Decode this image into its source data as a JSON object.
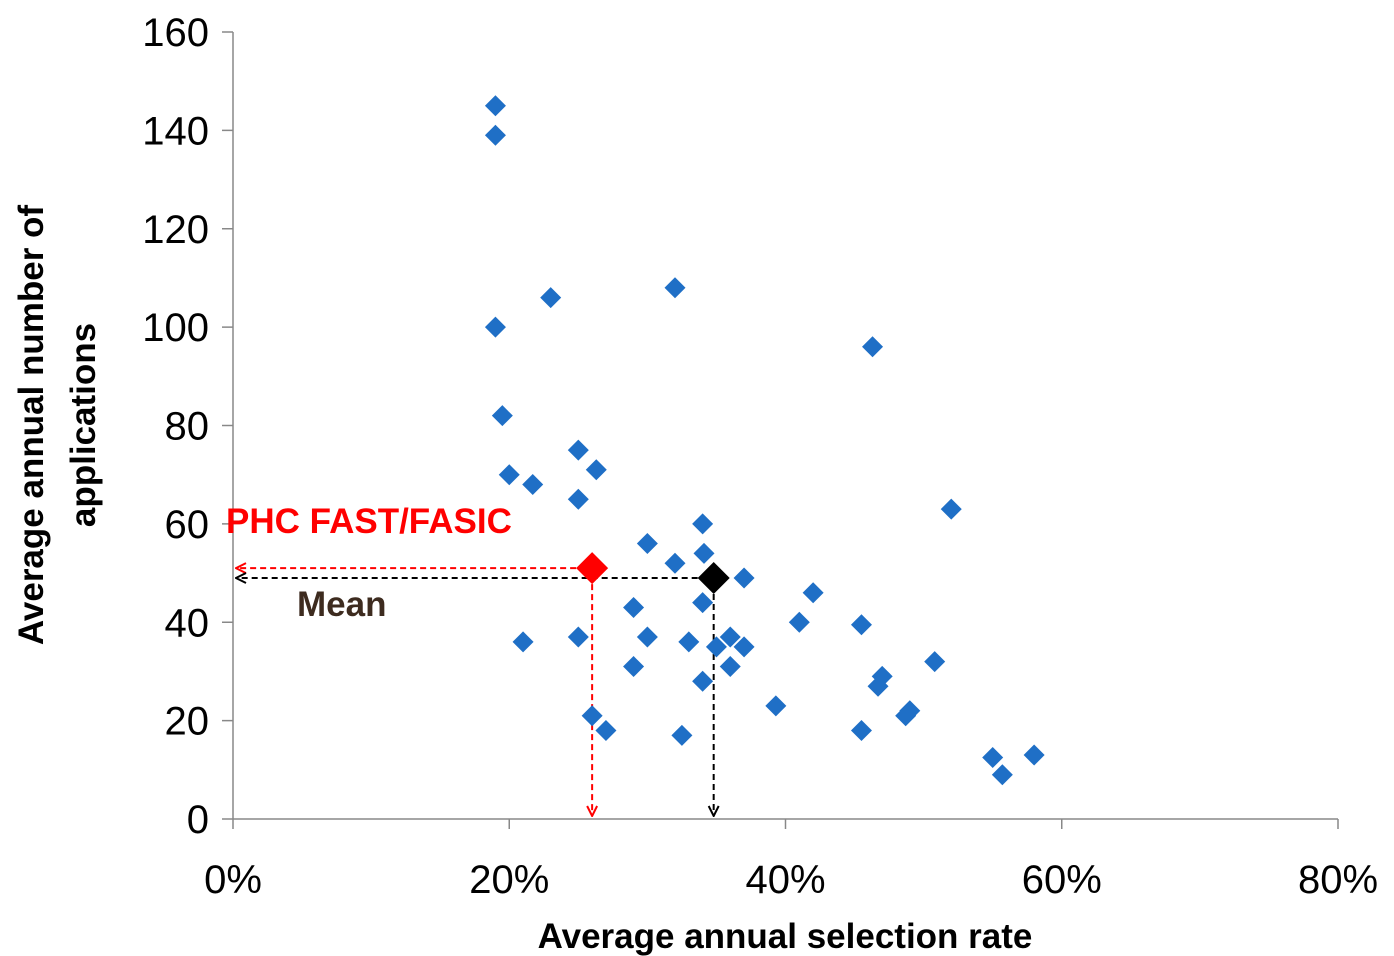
{
  "chart_data": {
    "type": "scatter",
    "xlabel": "Average annual selection rate",
    "ylabel_lines": [
      "Average annual number of",
      "applications"
    ],
    "xlim": [
      0,
      0.8
    ],
    "ylim": [
      0,
      160
    ],
    "x_ticks": [
      0,
      0.2,
      0.4,
      0.6,
      0.8
    ],
    "x_tick_labels": [
      "0%",
      "20%",
      "40%",
      "60%",
      "80%"
    ],
    "y_ticks": [
      0,
      20,
      40,
      60,
      80,
      100,
      120,
      140,
      160
    ],
    "y_tick_labels": [
      "0",
      "20",
      "40",
      "60",
      "80",
      "100",
      "120",
      "140",
      "160"
    ],
    "grid": false,
    "legend": "none",
    "series": [
      {
        "color": "#1f6fc6",
        "marker": "diamond",
        "points": [
          [
            0.19,
            145
          ],
          [
            0.19,
            139
          ],
          [
            0.19,
            100
          ],
          [
            0.195,
            82
          ],
          [
            0.2,
            70
          ],
          [
            0.217,
            68
          ],
          [
            0.23,
            106
          ],
          [
            0.21,
            36
          ],
          [
            0.25,
            75
          ],
          [
            0.25,
            65
          ],
          [
            0.263,
            71
          ],
          [
            0.25,
            37
          ],
          [
            0.26,
            21
          ],
          [
            0.27,
            18
          ],
          [
            0.29,
            43
          ],
          [
            0.29,
            31
          ],
          [
            0.3,
            56
          ],
          [
            0.3,
            37
          ],
          [
            0.32,
            52
          ],
          [
            0.32,
            108
          ],
          [
            0.325,
            17
          ],
          [
            0.33,
            36
          ],
          [
            0.34,
            60
          ],
          [
            0.341,
            54
          ],
          [
            0.34,
            44
          ],
          [
            0.34,
            28
          ],
          [
            0.35,
            35
          ],
          [
            0.36,
            37
          ],
          [
            0.36,
            31
          ],
          [
            0.37,
            49
          ],
          [
            0.37,
            35
          ],
          [
            0.393,
            23
          ],
          [
            0.41,
            40
          ],
          [
            0.42,
            46
          ],
          [
            0.455,
            39.5
          ],
          [
            0.455,
            18
          ],
          [
            0.463,
            96
          ],
          [
            0.47,
            29
          ],
          [
            0.467,
            27
          ],
          [
            0.487,
            21
          ],
          [
            0.49,
            22
          ],
          [
            0.508,
            32
          ],
          [
            0.52,
            63
          ],
          [
            0.55,
            12.5
          ],
          [
            0.557,
            9
          ],
          [
            0.58,
            13
          ]
        ]
      }
    ],
    "highlights": [
      {
        "label": "PHC FAST/FASIC",
        "x": 0.26,
        "y": 51,
        "color": "#ff0000"
      },
      {
        "label": "Mean",
        "x": 0.348,
        "y": 49,
        "color": "#000000",
        "label_color": "#3d2b1f"
      }
    ]
  }
}
